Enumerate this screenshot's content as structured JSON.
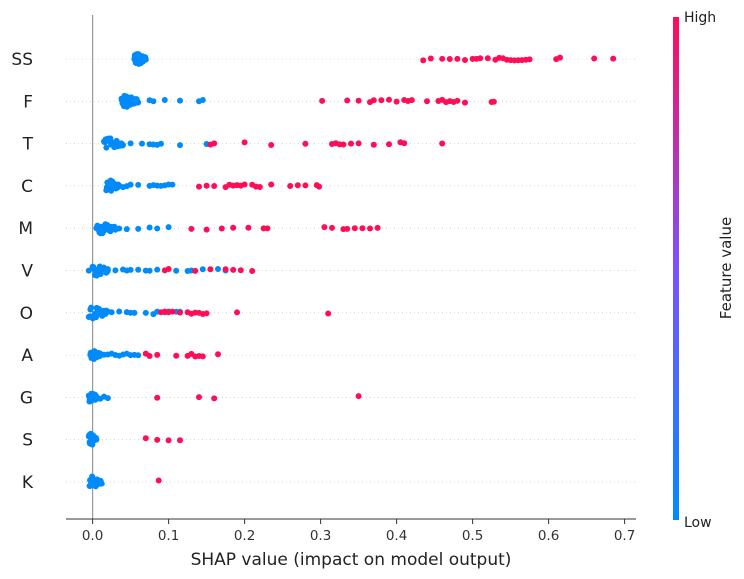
{
  "chart_data": {
    "type": "scatter",
    "subtype": "shap-beeswarm",
    "xlabel": "SHAP value (impact on model output)",
    "xlim": [
      -0.035,
      0.715
    ],
    "xticks": [
      0.0,
      0.1,
      0.2,
      0.3,
      0.4,
      0.5,
      0.6,
      0.7
    ],
    "xtick_labels": [
      "0.0",
      "0.1",
      "0.2",
      "0.3",
      "0.4",
      "0.5",
      "0.6",
      "0.7"
    ],
    "baseline_x": 0.0,
    "grid": "dotted horizontal per feature",
    "colorbar": {
      "label": "Feature value",
      "high_label": "High",
      "low_label": "Low",
      "high_color": "#ff0d57",
      "mid_color": "#7c52ff",
      "low_color": "#008bfb"
    },
    "features": [
      {
        "name": "SS",
        "low": [
          [
            0.055,
            0.07,
            60
          ]
        ],
        "high": [
          0.435,
          0.445,
          0.46,
          0.47,
          0.48,
          0.49,
          0.5,
          0.505,
          0.51,
          0.52,
          0.53,
          0.535,
          0.54,
          0.545,
          0.55,
          0.555,
          0.56,
          0.565,
          0.57,
          0.575,
          0.61,
          0.615,
          0.66,
          0.685
        ]
      },
      {
        "name": "F",
        "low": [
          [
            0.038,
            0.06,
            35
          ],
          0.075,
          0.08,
          0.095,
          0.115,
          0.14,
          0.145
        ],
        "high": [
          0.302,
          0.335,
          0.35,
          0.365,
          0.37,
          0.38,
          0.39,
          0.4,
          0.41,
          0.415,
          0.42,
          0.44,
          0.455,
          0.46,
          0.465,
          0.47,
          0.475,
          0.48,
          0.49,
          0.525,
          0.528
        ]
      },
      {
        "name": "T",
        "low": [
          [
            0.015,
            0.04,
            25
          ],
          0.05,
          0.065,
          0.075,
          0.08,
          0.085,
          0.09,
          0.115,
          0.15
        ],
        "high": [
          0.155,
          0.16,
          0.2,
          0.235,
          0.28,
          0.315,
          0.32,
          0.325,
          0.33,
          0.34,
          0.35,
          0.37,
          0.39,
          0.405,
          0.41,
          0.46
        ]
      },
      {
        "name": "C",
        "low": [
          [
            0.018,
            0.035,
            25
          ],
          0.04,
          0.045,
          0.05,
          0.06,
          0.075,
          0.08,
          0.085,
          0.09,
          0.095,
          0.1,
          0.105
        ],
        "high": [
          0.14,
          0.15,
          0.16,
          0.175,
          0.18,
          0.185,
          0.19,
          0.195,
          0.2,
          0.21,
          0.215,
          0.22,
          0.235,
          0.26,
          0.27,
          0.28,
          0.295,
          0.298
        ]
      },
      {
        "name": "M",
        "low": [
          [
            0.005,
            0.03,
            20
          ],
          0.035,
          0.045,
          0.06,
          0.075,
          0.085,
          0.1
        ],
        "high": [
          0.13,
          0.15,
          0.17,
          0.185,
          0.205,
          0.225,
          0.23,
          0.305,
          0.315,
          0.33,
          0.335,
          0.345,
          0.355,
          0.365,
          0.375
        ]
      },
      {
        "name": "V",
        "low": [
          [
            0.0,
            0.02,
            20
          ],
          -0.005,
          0.02,
          0.03,
          0.04,
          0.045,
          0.05,
          0.06,
          0.07,
          0.075,
          0.085,
          0.11,
          0.125,
          0.13,
          0.145,
          0.165,
          0.175
        ],
        "high": [
          0.095,
          0.1,
          0.135,
          0.155,
          0.175,
          0.185,
          0.195,
          0.21
        ]
      },
      {
        "name": "O",
        "low": [
          [
            -0.005,
            0.02,
            25
          ],
          0.025,
          0.035,
          0.045,
          0.05,
          0.055,
          0.07,
          0.08,
          0.085,
          0.095,
          0.1,
          0.11,
          0.115
        ],
        "high": [
          0.09,
          0.095,
          0.1,
          0.105,
          0.115,
          0.125,
          0.13,
          0.135,
          0.14,
          0.145,
          0.15,
          0.19,
          0.31
        ]
      },
      {
        "name": "A",
        "low": [
          [
            -0.003,
            0.01,
            20
          ],
          0.015,
          0.02,
          0.025,
          0.03,
          0.035,
          0.04,
          0.045,
          0.05,
          0.055,
          0.06
        ],
        "high": [
          0.07,
          0.075,
          0.085,
          0.11,
          0.125,
          0.13,
          0.135,
          0.14,
          0.145,
          0.165
        ]
      },
      {
        "name": "G",
        "low": [
          [
            -0.005,
            0.005,
            25
          ],
          0.01,
          0.015,
          0.02
        ],
        "high": [
          0.085,
          0.14,
          0.16,
          0.35
        ]
      },
      {
        "name": "S",
        "low": [
          [
            -0.005,
            0.005,
            20
          ]
        ],
        "high": [
          0.07,
          0.085,
          0.1,
          0.115
        ]
      },
      {
        "name": "K",
        "low": [
          [
            -0.004,
            0.012,
            25
          ]
        ],
        "high": [
          0.087
        ]
      }
    ]
  }
}
